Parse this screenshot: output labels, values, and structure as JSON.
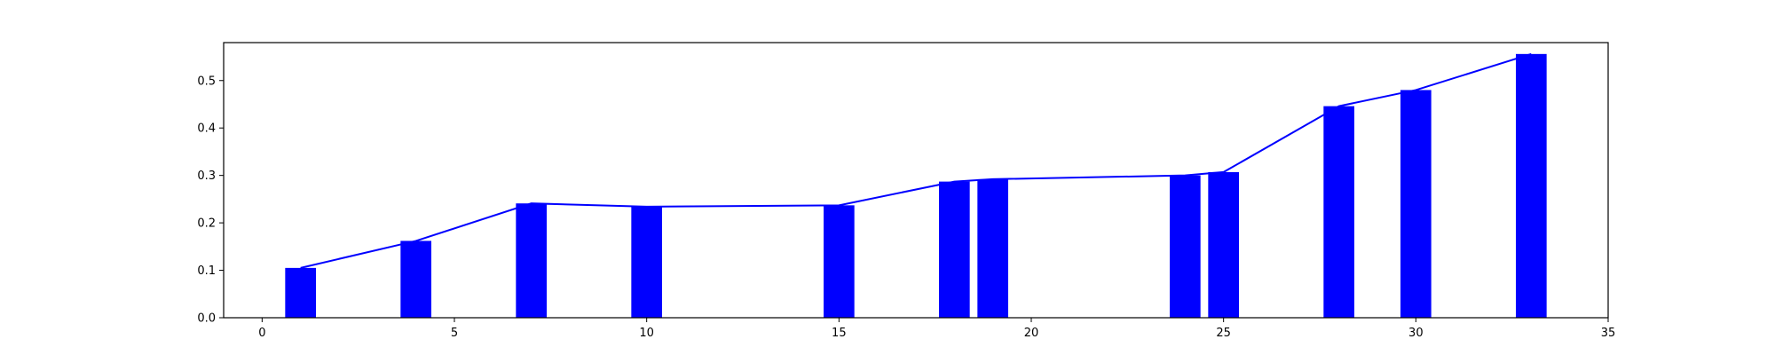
{
  "chart_data": {
    "type": "bar",
    "title": "",
    "xlabel": "",
    "ylabel": "",
    "xlim": [
      -1,
      35
    ],
    "ylim": [
      0,
      0.58
    ],
    "xticks": [
      0,
      5,
      10,
      15,
      20,
      25,
      30,
      35
    ],
    "yticks": [
      0.0,
      0.1,
      0.2,
      0.3,
      0.4,
      0.5
    ],
    "xtick_labels": [
      "0",
      "5",
      "10",
      "15",
      "20",
      "25",
      "30",
      "35"
    ],
    "ytick_labels": [
      "0.0",
      "0.1",
      "0.2",
      "0.3",
      "0.4",
      "0.5"
    ],
    "grid": false,
    "bar_color": "#0000ff",
    "line_color": "#0000ff",
    "bar_width": 0.8,
    "series": [
      {
        "kind": "bar",
        "x": [
          1,
          4,
          7,
          10,
          15,
          18,
          19,
          24,
          25,
          28,
          30,
          33
        ],
        "values": [
          0.105,
          0.162,
          0.241,
          0.234,
          0.237,
          0.287,
          0.292,
          0.3,
          0.307,
          0.446,
          0.48,
          0.556
        ]
      },
      {
        "kind": "line",
        "x": [
          1,
          4,
          7,
          10,
          15,
          18,
          19,
          24,
          25,
          28,
          30,
          33
        ],
        "values": [
          0.105,
          0.162,
          0.241,
          0.234,
          0.237,
          0.287,
          0.292,
          0.3,
          0.307,
          0.446,
          0.48,
          0.556
        ]
      }
    ]
  }
}
